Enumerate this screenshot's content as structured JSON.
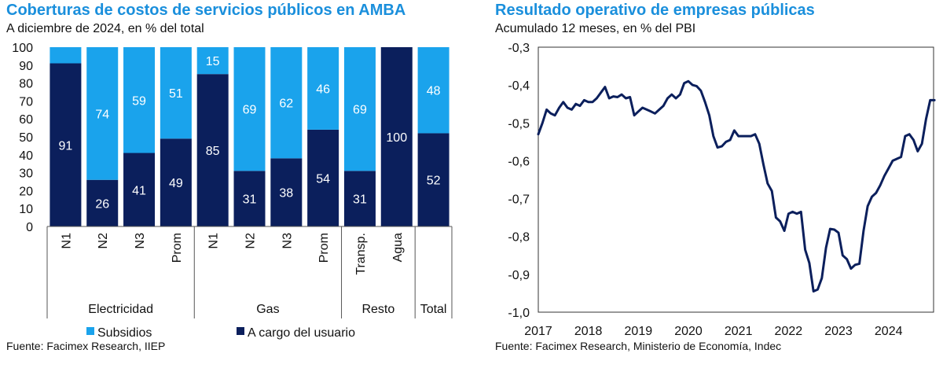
{
  "left_chart": {
    "title": "Coberturas de costos de servicios públicos en AMBA",
    "subtitle": "A diciembre de 2024, en % del total",
    "source": "Fuente: Facimex Research, IIEP"
  },
  "right_chart": {
    "title": "Resultado operativo de empresas públicas",
    "subtitle": "Acumulado 12 meses, en % del PBI",
    "source": "Fuente: Facimex Research, Ministerio de Economía, Indec"
  },
  "colors": {
    "subsidios": "#1aa3ec",
    "usuario": "#0b1f5c",
    "line": "#0b1f5c",
    "title": "#1a8fdc"
  },
  "chart_data": [
    {
      "type": "bar",
      "stacked": true,
      "categories": [
        "N1",
        "N2",
        "N3",
        "Prom",
        "N1",
        "N2",
        "N3",
        "Prom",
        "Transp.",
        "Agua",
        ""
      ],
      "groups": [
        {
          "label": "Electricidad",
          "count": 4
        },
        {
          "label": "Gas",
          "count": 4
        },
        {
          "label": "Resto",
          "count": 2
        },
        {
          "label": "Total",
          "count": 1
        }
      ],
      "series": [
        {
          "name": "A cargo del usuario",
          "values": [
            91,
            26,
            41,
            49,
            85,
            31,
            38,
            54,
            31,
            100,
            52
          ],
          "labels": [
            "91",
            "26",
            "41",
            "49",
            "85",
            "31",
            "38",
            "54",
            "31",
            "100",
            "52"
          ]
        },
        {
          "name": "Subsidios",
          "values": [
            9,
            74,
            59,
            51,
            15,
            69,
            62,
            46,
            69,
            0,
            48
          ],
          "labels": [
            "",
            "74",
            "59",
            "51",
            "15",
            "69",
            "62",
            "46",
            "69",
            "",
            "48"
          ]
        }
      ],
      "yticks": [
        "0",
        "10",
        "20",
        "30",
        "40",
        "50",
        "60",
        "70",
        "80",
        "90",
        "100"
      ],
      "ylim": [
        0,
        100
      ],
      "legend": "bottom"
    },
    {
      "type": "line",
      "series": [
        {
          "x": [
            2017.0,
            2017.083,
            2017.167,
            2017.25,
            2017.333,
            2017.417,
            2017.5,
            2017.583,
            2017.667,
            2017.75,
            2017.833,
            2017.917,
            2018.0,
            2018.083,
            2018.167,
            2018.25,
            2018.333,
            2018.417,
            2018.5,
            2018.583,
            2018.667,
            2018.75,
            2018.833,
            2018.917,
            2019.0,
            2019.083,
            2019.167,
            2019.25,
            2019.333,
            2019.417,
            2019.5,
            2019.583,
            2019.667,
            2019.75,
            2019.833,
            2019.917,
            2020.0,
            2020.083,
            2020.167,
            2020.25,
            2020.333,
            2020.417,
            2020.5,
            2020.583,
            2020.667,
            2020.75,
            2020.833,
            2020.917,
            2021.0,
            2021.083,
            2021.167,
            2021.25,
            2021.333,
            2021.417,
            2021.5,
            2021.583,
            2021.667,
            2021.75,
            2021.833,
            2021.917,
            2022.0,
            2022.083,
            2022.167,
            2022.25,
            2022.333,
            2022.417,
            2022.5,
            2022.583,
            2022.667,
            2022.75,
            2022.833,
            2022.917,
            2023.0,
            2023.083,
            2023.167,
            2023.25,
            2023.333,
            2023.417,
            2023.5,
            2023.583,
            2023.667,
            2023.75,
            2023.833,
            2023.917,
            2024.0,
            2024.083,
            2024.167,
            2024.25,
            2024.333,
            2024.417,
            2024.5,
            2024.583,
            2024.667,
            2024.75,
            2024.833,
            2024.917
          ],
          "y": [
            -0.53,
            -0.5,
            -0.465,
            -0.475,
            -0.48,
            -0.46,
            -0.445,
            -0.46,
            -0.465,
            -0.45,
            -0.455,
            -0.44,
            -0.445,
            -0.445,
            -0.435,
            -0.42,
            -0.405,
            -0.435,
            -0.43,
            -0.432,
            -0.425,
            -0.435,
            -0.432,
            -0.48,
            -0.47,
            -0.46,
            -0.465,
            -0.47,
            -0.475,
            -0.465,
            -0.455,
            -0.435,
            -0.425,
            -0.435,
            -0.425,
            -0.395,
            -0.39,
            -0.4,
            -0.403,
            -0.415,
            -0.445,
            -0.48,
            -0.535,
            -0.565,
            -0.562,
            -0.55,
            -0.545,
            -0.52,
            -0.535,
            -0.535,
            -0.535,
            -0.535,
            -0.53,
            -0.555,
            -0.61,
            -0.66,
            -0.68,
            -0.75,
            -0.76,
            -0.785,
            -0.74,
            -0.735,
            -0.74,
            -0.735,
            -0.835,
            -0.87,
            -0.945,
            -0.94,
            -0.91,
            -0.83,
            -0.78,
            -0.782,
            -0.79,
            -0.85,
            -0.86,
            -0.885,
            -0.875,
            -0.872,
            -0.785,
            -0.72,
            -0.695,
            -0.685,
            -0.665,
            -0.64,
            -0.62,
            -0.6,
            -0.595,
            -0.59,
            -0.535,
            -0.53,
            -0.545,
            -0.575,
            -0.555,
            -0.49,
            -0.44,
            -0.44
          ]
        }
      ],
      "xticks": [
        "2017",
        "2018",
        "2019",
        "2020",
        "2021",
        "2022",
        "2023",
        "2024"
      ],
      "yticks": [
        "-0,3",
        "-0,4",
        "-0,5",
        "-0,6",
        "-0,7",
        "-0,8",
        "-0,9",
        "-1,0"
      ],
      "xlim": [
        2017,
        2024.9
      ],
      "ylim": [
        -1.0,
        -0.3
      ]
    }
  ]
}
